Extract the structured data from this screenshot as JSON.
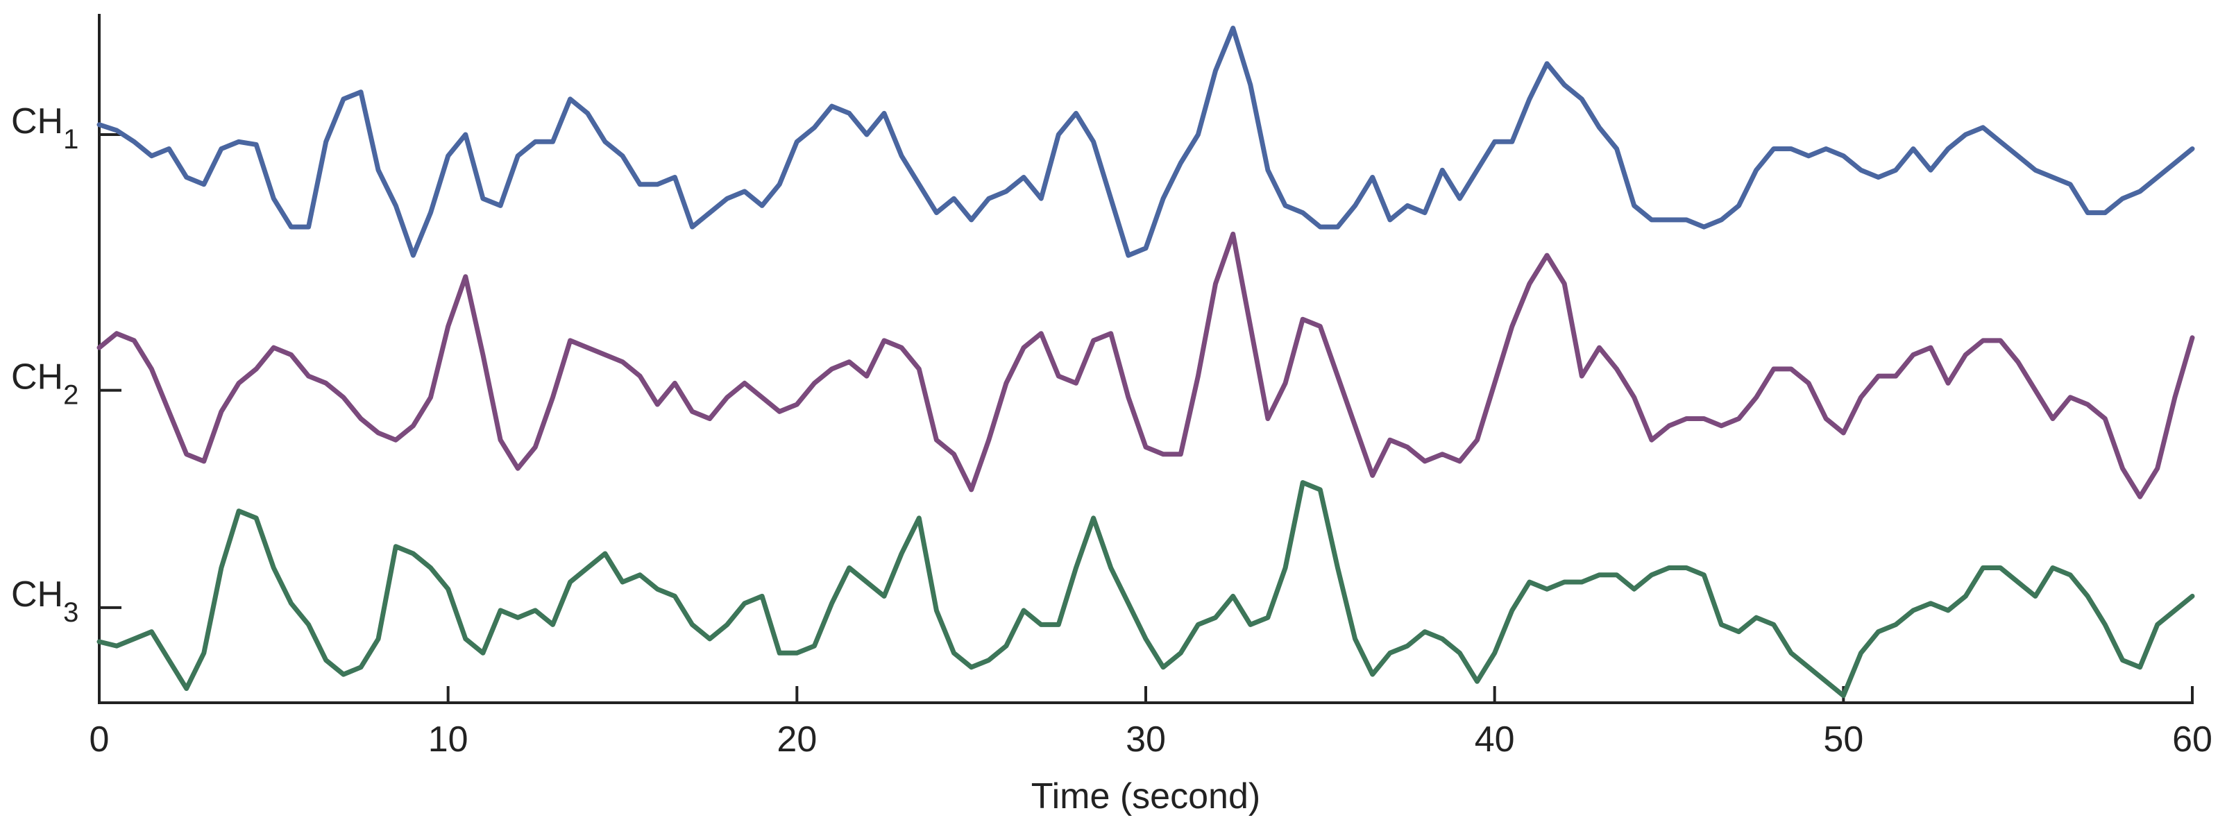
{
  "chart_data": {
    "type": "line",
    "x_label": "Time (second)",
    "x": [
      0,
      0.5,
      1,
      1.5,
      2,
      2.5,
      3,
      3.5,
      4,
      4.5,
      5,
      5.5,
      6,
      6.5,
      7,
      7.5,
      8,
      8.5,
      9,
      9.5,
      10,
      10.5,
      11,
      11.5,
      12,
      12.5,
      13,
      13.5,
      14,
      14.5,
      15,
      15.5,
      16,
      16.5,
      17,
      17.5,
      18,
      18.5,
      19,
      19.5,
      20,
      20.5,
      21,
      21.5,
      22,
      22.5,
      23,
      23.5,
      24,
      24.5,
      25,
      25.5,
      26,
      26.5,
      27,
      27.5,
      28,
      28.5,
      29,
      29.5,
      30,
      30.5,
      31,
      31.5,
      32,
      32.5,
      33,
      33.5,
      34,
      34.5,
      35,
      35.5,
      36,
      36.5,
      37,
      37.5,
      38,
      38.5,
      39,
      39.5,
      40,
      40.5,
      41,
      41.5,
      42,
      42.5,
      43,
      43.5,
      44,
      44.5,
      45,
      45.5,
      46,
      46.5,
      47,
      47.5,
      48,
      48.5,
      49,
      49.5,
      50,
      50.5,
      51,
      51.5,
      52,
      52.5,
      53,
      53.5,
      54,
      54.5,
      55,
      55.5,
      56,
      56.5,
      57,
      57.5,
      58,
      58.5,
      59,
      59.5,
      60
    ],
    "series": [
      {
        "color": "#4a66a0",
        "values": [
          3.4,
          3.36,
          3.28,
          3.18,
          3.23,
          3.03,
          2.98,
          3.23,
          3.28,
          3.26,
          2.88,
          2.68,
          2.68,
          3.28,
          3.58,
          3.63,
          3.08,
          2.83,
          2.48,
          2.78,
          3.18,
          3.33,
          2.88,
          2.83,
          3.18,
          3.28,
          3.28,
          3.58,
          3.48,
          3.28,
          3.18,
          2.98,
          2.98,
          3.03,
          2.68,
          2.78,
          2.88,
          2.93,
          2.83,
          2.98,
          3.28,
          3.38,
          3.53,
          3.48,
          3.33,
          3.48,
          3.18,
          2.98,
          2.78,
          2.88,
          2.73,
          2.88,
          2.93,
          3.03,
          2.88,
          3.33,
          3.48,
          3.28,
          2.88,
          2.48,
          2.53,
          2.88,
          3.13,
          3.33,
          3.78,
          4.08,
          3.68,
          3.08,
          2.83,
          2.78,
          2.68,
          2.68,
          2.83,
          3.03,
          2.73,
          2.83,
          2.78,
          3.08,
          2.88,
          3.08,
          3.28,
          3.28,
          3.58,
          3.83,
          3.68,
          3.58,
          3.38,
          3.23,
          2.83,
          2.73,
          2.73,
          2.73,
          2.68,
          2.73,
          2.83,
          3.08,
          3.23,
          3.23,
          3.18,
          3.23,
          3.18,
          3.08,
          3.03,
          3.08,
          3.23,
          3.08,
          3.23,
          3.33,
          3.38,
          3.28,
          3.18,
          3.08,
          3.03,
          2.98,
          2.78,
          2.78,
          2.88,
          2.93,
          3.03,
          3.13,
          3.23
        ]
      },
      {
        "color": "#7b4a7d",
        "values": [
          1.83,
          1.93,
          1.88,
          1.68,
          1.38,
          1.08,
          1.03,
          1.38,
          1.58,
          1.68,
          1.83,
          1.78,
          1.63,
          1.58,
          1.48,
          1.33,
          1.23,
          1.18,
          1.28,
          1.48,
          1.98,
          2.33,
          1.78,
          1.18,
          0.98,
          1.13,
          1.48,
          1.88,
          1.83,
          1.78,
          1.73,
          1.63,
          1.43,
          1.58,
          1.38,
          1.33,
          1.48,
          1.58,
          1.48,
          1.38,
          1.43,
          1.58,
          1.68,
          1.73,
          1.63,
          1.88,
          1.83,
          1.68,
          1.18,
          1.08,
          0.83,
          1.18,
          1.58,
          1.83,
          1.93,
          1.63,
          1.58,
          1.88,
          1.93,
          1.48,
          1.13,
          1.08,
          1.08,
          1.63,
          2.28,
          2.63,
          1.98,
          1.33,
          1.58,
          2.03,
          1.98,
          1.63,
          1.28,
          0.93,
          1.18,
          1.13,
          1.03,
          1.08,
          1.03,
          1.18,
          1.58,
          1.98,
          2.28,
          2.48,
          2.28,
          1.63,
          1.83,
          1.68,
          1.48,
          1.18,
          1.28,
          1.33,
          1.33,
          1.28,
          1.33,
          1.48,
          1.68,
          1.68,
          1.58,
          1.33,
          1.23,
          1.48,
          1.63,
          1.63,
          1.78,
          1.83,
          1.58,
          1.78,
          1.88,
          1.88,
          1.73,
          1.53,
          1.33,
          1.48,
          1.43,
          1.33,
          0.98,
          0.78,
          0.98,
          1.48,
          1.9
        ]
      },
      {
        "color": "#3d7659",
        "values": [
          -0.24,
          -0.27,
          -0.22,
          -0.17,
          -0.37,
          -0.57,
          -0.32,
          0.28,
          0.68,
          0.63,
          0.28,
          0.03,
          -0.12,
          -0.37,
          -0.47,
          -0.42,
          -0.22,
          0.43,
          0.38,
          0.28,
          0.13,
          -0.22,
          -0.32,
          -0.02,
          -0.07,
          -0.02,
          -0.12,
          0.18,
          0.28,
          0.38,
          0.18,
          0.23,
          0.13,
          0.08,
          -0.12,
          -0.22,
          -0.12,
          0.03,
          0.08,
          -0.32,
          -0.32,
          -0.27,
          0.03,
          0.28,
          0.18,
          0.08,
          0.38,
          0.63,
          -0.02,
          -0.32,
          -0.42,
          -0.37,
          -0.27,
          -0.02,
          -0.12,
          -0.12,
          0.28,
          0.63,
          0.28,
          0.03,
          -0.22,
          -0.42,
          -0.32,
          -0.12,
          -0.07,
          0.08,
          -0.12,
          -0.07,
          0.28,
          0.88,
          0.83,
          0.28,
          -0.22,
          -0.47,
          -0.32,
          -0.27,
          -0.17,
          -0.22,
          -0.32,
          -0.52,
          -0.32,
          -0.02,
          0.18,
          0.13,
          0.18,
          0.18,
          0.23,
          0.23,
          0.13,
          0.23,
          0.28,
          0.28,
          0.23,
          -0.12,
          -0.17,
          -0.07,
          -0.12,
          -0.32,
          -0.42,
          -0.52,
          -0.62,
          -0.32,
          -0.17,
          -0.12,
          -0.02,
          0.03,
          -0.02,
          0.08,
          0.28,
          0.28,
          0.18,
          0.08,
          0.28,
          0.23,
          0.08,
          -0.12,
          -0.37,
          -0.42,
          -0.12,
          -0.02,
          0.08
        ]
      }
    ],
    "xlim": [
      0,
      60
    ],
    "xticks": [
      0,
      10,
      20,
      30,
      40,
      50,
      60
    ],
    "ylim": [
      -0.67,
      4.18
    ],
    "yticks": [
      {
        "value": 3.33,
        "label": "CH1"
      },
      {
        "value": 1.53,
        "label": "CH2"
      },
      {
        "value": 0,
        "label": "CH3"
      }
    ]
  }
}
